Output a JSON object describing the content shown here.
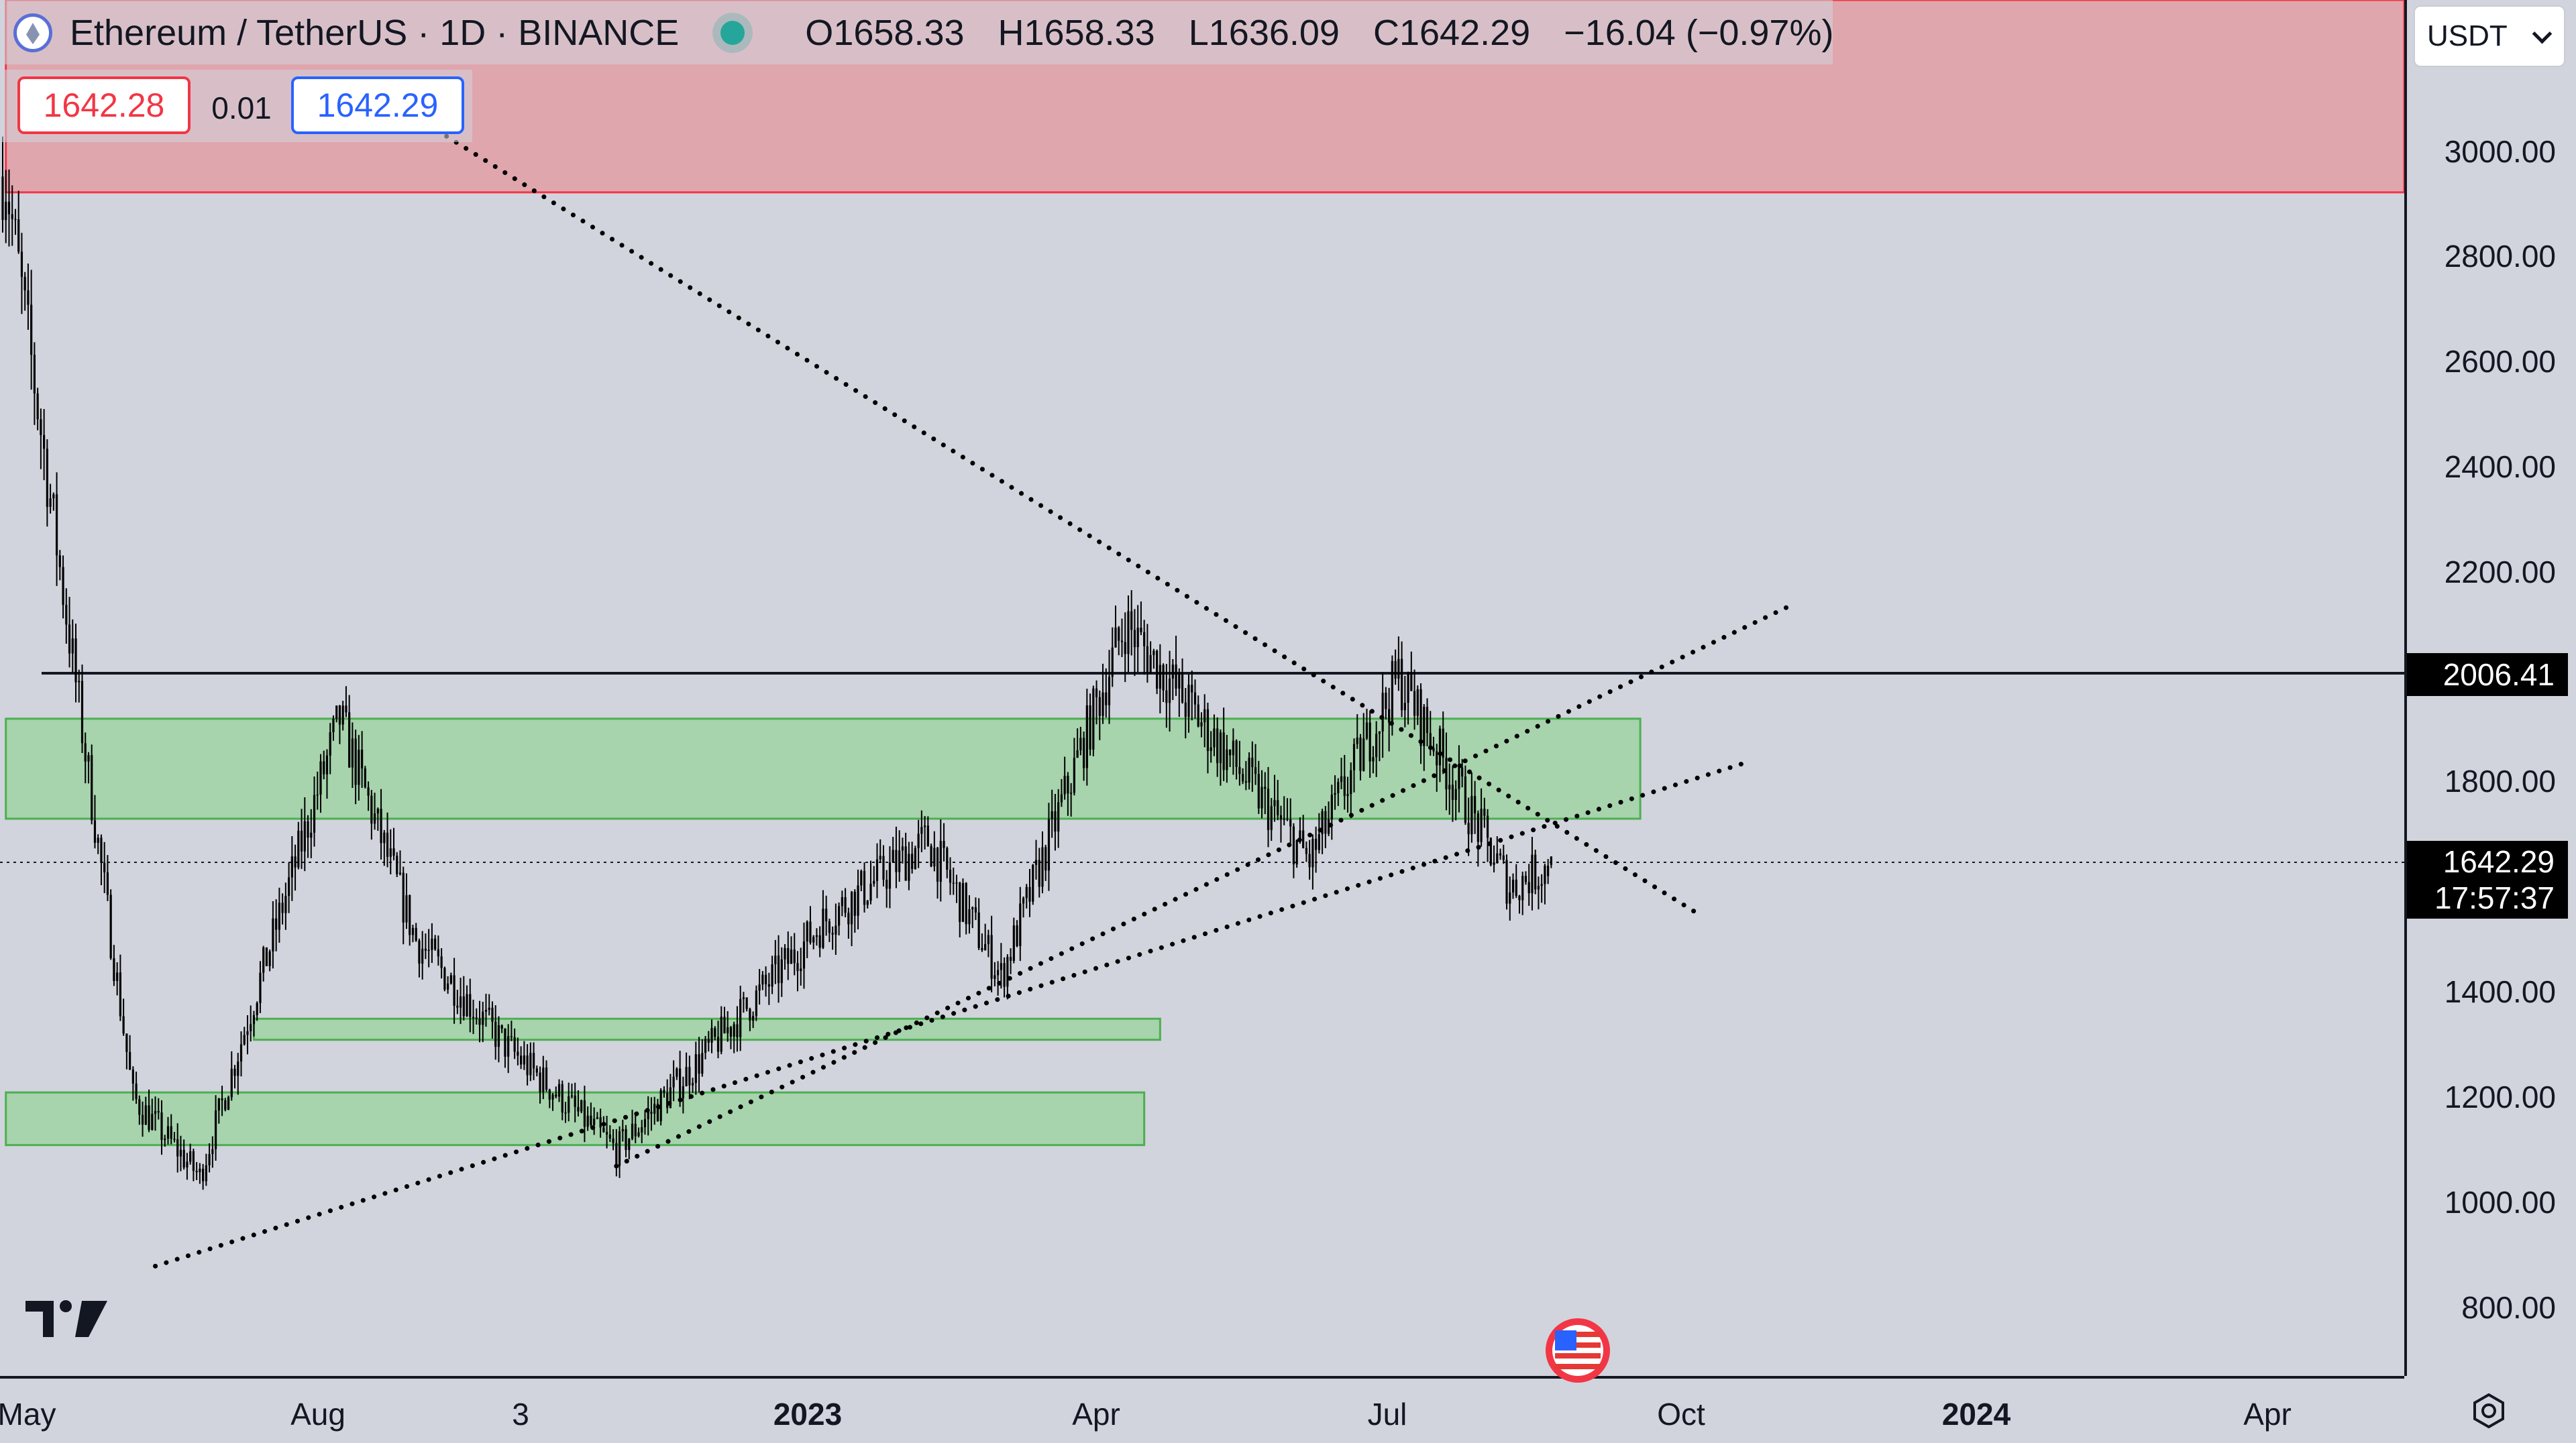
{
  "legend": {
    "symbol": "Ethereum / TetherUS · 1D · BINANCE",
    "ohlc": [
      {
        "label": "O",
        "value": "1658.33"
      },
      {
        "label": "H",
        "value": "1658.33"
      },
      {
        "label": "L",
        "value": "1636.09"
      },
      {
        "label": "C",
        "value": "1642.29"
      }
    ],
    "change": "−16.04 (−0.97%)"
  },
  "order_panel": {
    "sell": "1642.28",
    "spread": "0.01",
    "buy": "1642.29"
  },
  "currency_select": {
    "value": "USDT"
  },
  "price_axis": {
    "ticks": [
      "800.00",
      "1000.00",
      "1200.00",
      "1400.00",
      "1800.00",
      "2000.00",
      "2200.00",
      "2400.00",
      "2600.00",
      "2800.00",
      "3000.00"
    ]
  },
  "horizontal_line": {
    "price": "2006.41"
  },
  "last_price": {
    "price": "1642.29",
    "countdown": "17:57:37"
  },
  "time_axis": {
    "ticks": [
      {
        "label": "May",
        "bold": false
      },
      {
        "label": "Aug",
        "bold": false
      },
      {
        "label": "3",
        "bold": false
      },
      {
        "label": "2023",
        "bold": true
      },
      {
        "label": "Apr",
        "bold": false
      },
      {
        "label": "Jul",
        "bold": false
      },
      {
        "label": "Oct",
        "bold": false
      },
      {
        "label": "2024",
        "bold": true
      },
      {
        "label": "Apr",
        "bold": false
      }
    ]
  },
  "colors": {
    "background": "#d1d4dc",
    "supply_zone": "#e0a6ad",
    "supply_border": "#f23645",
    "demand_zone": "#a7d3ad",
    "demand_border": "#4caf50",
    "candles": "#000000",
    "trendline": "#000000"
  },
  "chart_data": {
    "type": "candlestick",
    "symbol": "ETHUSDT",
    "interval": "1D",
    "ylim": [
      720,
      3150
    ],
    "x": [
      "2022-05-01",
      "2022-06-10",
      "2022-07-01",
      "2022-08-14",
      "2022-09-07",
      "2022-10-05",
      "2022-11-09",
      "2022-12-05",
      "2023-01-14",
      "2023-02-15",
      "2023-03-10",
      "2023-04-18",
      "2023-06-15",
      "2023-07-13",
      "2023-08-17",
      "2023-08-30"
    ],
    "close_path": [
      2950,
      1200,
      1050,
      1920,
      1500,
      1300,
      1100,
      1270,
      1540,
      1690,
      1430,
      2100,
      1650,
      2000,
      1600,
      1642.29
    ],
    "last": {
      "open": 1658.33,
      "high": 1658.33,
      "low": 1636.09,
      "close": 1642.29,
      "change": -16.04,
      "change_pct": -0.97
    },
    "zones": [
      {
        "kind": "supply",
        "from": "2022-05-01",
        "to": null,
        "low": 2920,
        "high": 3290
      },
      {
        "kind": "demand",
        "from": "2022-05-01",
        "to": "2023-09-27",
        "low": 1730,
        "high": 1920
      },
      {
        "kind": "demand",
        "from": "2022-07-18",
        "to": "2023-04-29",
        "low": 1310,
        "high": 1350
      },
      {
        "kind": "demand",
        "from": "2022-05-01",
        "to": "2023-04-24",
        "low": 1110,
        "high": 1210
      }
    ],
    "horizontal_lines": [
      2006.41
    ],
    "trendlines": [
      {
        "style": "dotted",
        "points": [
          [
            "2022-06-17",
            880
          ],
          [
            "2023-11-01",
            1840
          ]
        ]
      },
      {
        "style": "dotted",
        "points": [
          [
            "2022-11-09",
            1070
          ],
          [
            "2023-11-15",
            2140
          ]
        ]
      },
      {
        "style": "dotted",
        "points": [
          [
            "2022-08-20",
            3130
          ],
          [
            "2023-10-15",
            1550
          ]
        ]
      }
    ]
  }
}
